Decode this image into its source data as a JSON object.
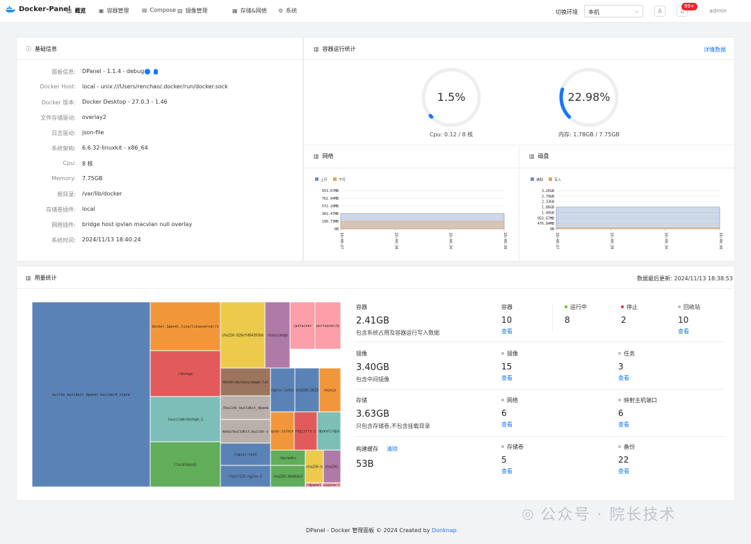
{
  "nav": {
    "brand": "Docker-Panel",
    "items": [
      {
        "label": "概览",
        "icon": "chart-icon"
      },
      {
        "label": "容器管理",
        "icon": "container-icon"
      },
      {
        "label": "Compose",
        "icon": "compose-icon"
      },
      {
        "label": "镜像管理",
        "icon": "image-icon"
      },
      {
        "label": "存储&网络",
        "icon": "storage-icon"
      },
      {
        "label": "系统",
        "icon": "gear-icon"
      }
    ],
    "env_label": "切换环境",
    "env_value": "本机",
    "badge": "99+",
    "user": "admin"
  },
  "basic": {
    "title": "基础信息",
    "rows": [
      {
        "label": "面板信息:",
        "value": "DPanel - 1.1.4 - debug"
      },
      {
        "label": "Docker Host:",
        "value": "local - unix:///Users/renchao/.docker/run/docker.sock"
      },
      {
        "label": "Docker 版本:",
        "value": "Docker Desktop - 27.0.3 - 1.46"
      },
      {
        "label": "文件存储驱动:",
        "value": "overlay2"
      },
      {
        "label": "日志驱动:",
        "value": "json-file"
      },
      {
        "label": "系统架构:",
        "value": "6.6.32-linuxkit - x86_64"
      },
      {
        "label": "Cpu:",
        "value": "8 核"
      },
      {
        "label": "Memory:",
        "value": "7.75GB"
      },
      {
        "label": "根目录:",
        "value": "/var/lib/docker"
      },
      {
        "label": "存储卷插件:",
        "value": "local"
      },
      {
        "label": "网络插件:",
        "value": "bridge  host  ipvlan  macvlan  null  overlay"
      },
      {
        "label": "系统时间:",
        "value": "2024/11/13 18:40:24"
      }
    ]
  },
  "runtime": {
    "title": "容器运行统计",
    "detail_link": "详情数据",
    "cpu": {
      "percent": 1.5,
      "label": "1.5%",
      "caption": "Cpu: 0.12 / 8 核"
    },
    "mem": {
      "percent": 22.98,
      "label": "22.98%",
      "caption": "内存: 1.78GB / 7.75GB"
    }
  },
  "network": {
    "title": "网络",
    "legend": [
      "上行",
      "下行"
    ],
    "colors": [
      "#6f8fbf",
      "#e8a25a"
    ]
  },
  "disk": {
    "title": "磁盘",
    "legend": [
      "读取",
      "写入"
    ],
    "colors": [
      "#6f8fbf",
      "#e8a25a"
    ]
  },
  "chart_data": [
    {
      "type": "area",
      "title": "",
      "series": [
        {
          "name": "上行",
          "values": [
            381.47,
            381.47,
            381.47,
            381.47
          ]
        },
        {
          "name": "下行",
          "values": [
            190.73,
            190.73,
            190.73,
            190.73
          ]
        }
      ],
      "x": [
        "18:40:27",
        "18:40:30",
        "18:40:34",
        "18:40:38"
      ],
      "y_ticks": [
        "953.67MB",
        "762.94MB",
        "572.20MB",
        "381.47MB",
        "190.73MB",
        "0B"
      ],
      "ylim": [
        0,
        953.67
      ]
    },
    {
      "type": "area",
      "title": "",
      "series": [
        {
          "name": "读取",
          "values": [
            1.86,
            1.86,
            1.86,
            1.86
          ]
        },
        {
          "name": "写入",
          "values": [
            0.1,
            0.1,
            0.1,
            0.1
          ]
        }
      ],
      "x": [
        "18:40:27",
        "18:40:30",
        "18:40:34",
        "18:40:38"
      ],
      "y_ticks": [
        "3.26GB",
        "2.79GB",
        "2.33GB",
        "1.86GB",
        "1.40GB",
        "953.67MB",
        "476.84MB",
        "0B"
      ],
      "ylim": [
        0,
        3.26
      ]
    }
  ],
  "usage": {
    "title": "用量统计",
    "updated": "数据最后更新: 2024/11/13 18:38:53",
    "treemap": [
      "builds_buildkit_dpanel-builder0_state",
      "docker.1panel.live/linuxserver/c",
      "/dockge",
      "louislam/dockge:1",
      "/localmysql",
      "sha256:826efd84393bb",
      "/easyimage",
      "/potainer",
      "portainer/p",
      "ddsderek/easyimage:lat",
      "/builds_buildkit_dpane",
      "moby/buildkit:buildx-s",
      "/nginx-test",
      "/test123-nginx-1",
      "nginx:lates",
      "sha256:3625",
      "/minio",
      "quay.io/min",
      "registry.c",
      "dpanel/dpa",
      "/myredis",
      "sha256:0e403e3",
      "sha256:b",
      "sha256:",
      "/dpanel",
      "alpine:l"
    ],
    "stats": {
      "container": {
        "name": "容器",
        "value": "2.41GB",
        "sub": "包含系统占用及容器运行写入数据"
      },
      "image": {
        "name": "镜像",
        "value": "3.40GB",
        "sub": "包含中间镜像"
      },
      "storage": {
        "name": "存储",
        "value": "3.63GB",
        "sub": "只包含存储卷,不包含挂载目录"
      },
      "cache": {
        "name": "构建缓存",
        "action": "清除",
        "value": "53B"
      }
    },
    "counts": {
      "containers": {
        "name": "容器",
        "value": "10",
        "link": "查看"
      },
      "running": {
        "name": "运行中",
        "value": "8",
        "color": "#52c41a"
      },
      "stopped": {
        "name": "停止",
        "value": "2",
        "color": "#f5222d"
      },
      "recycle": {
        "name": "回收站",
        "value": "10",
        "link": "查看"
      },
      "images": {
        "name": "镜像",
        "value": "15",
        "link": "查看"
      },
      "tasks": {
        "name": "任务",
        "value": "3",
        "link": "查看"
      },
      "networks": {
        "name": "网络",
        "value": "6",
        "link": "查看"
      },
      "ports": {
        "name": "映射主机端口",
        "value": "6",
        "link": "查看"
      },
      "volumes": {
        "name": "存储卷",
        "value": "5",
        "link": "查看"
      },
      "backups": {
        "name": "备份",
        "value": "22",
        "link": "查看"
      }
    }
  },
  "footer": {
    "text": "DPanel - Docker 管理面板 © 2024 Created by ",
    "author": "Donknap"
  },
  "watermark": "公众号 · 院长技术"
}
